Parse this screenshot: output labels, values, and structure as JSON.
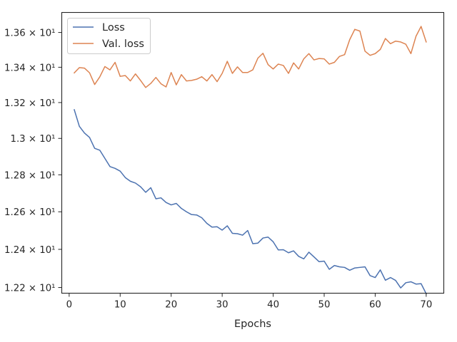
{
  "chart_data": {
    "type": "line",
    "title": "",
    "xlabel": "Epochs",
    "ylabel": "",
    "xlim": [
      -1.45,
      73.45
    ],
    "ylim": [
      12.1706,
      13.7163
    ],
    "y_scale": "log",
    "x_ticks": [
      {
        "value": 0,
        "label": "0"
      },
      {
        "value": 10,
        "label": "10"
      },
      {
        "value": 20,
        "label": "20"
      },
      {
        "value": 30,
        "label": "30"
      },
      {
        "value": 40,
        "label": "40"
      },
      {
        "value": 50,
        "label": "50"
      },
      {
        "value": 60,
        "label": "60"
      },
      {
        "value": 70,
        "label": "70"
      }
    ],
    "y_ticks": [
      {
        "value": 12.2,
        "label": "1.22 × 10¹"
      },
      {
        "value": 12.4,
        "label": "1.24 × 10¹"
      },
      {
        "value": 12.6,
        "label": "1.26 × 10¹"
      },
      {
        "value": 12.8,
        "label": "1.28 × 10¹"
      },
      {
        "value": 13.0,
        "label": "1.3 × 10¹"
      },
      {
        "value": 13.2,
        "label": "1.32 × 10¹"
      },
      {
        "value": 13.4,
        "label": "1.34 × 10¹"
      },
      {
        "value": 13.6,
        "label": "1.36 × 10¹"
      }
    ],
    "grid": false,
    "legend_position": "top-left",
    "x": [
      1,
      2,
      3,
      4,
      5,
      6,
      7,
      8,
      9,
      10,
      11,
      12,
      13,
      14,
      15,
      16,
      17,
      18,
      19,
      20,
      21,
      22,
      23,
      24,
      25,
      26,
      27,
      28,
      29,
      30,
      31,
      32,
      33,
      34,
      35,
      36,
      37,
      38,
      39,
      40,
      41,
      42,
      43,
      44,
      45,
      46,
      47,
      48,
      49,
      50,
      51,
      52,
      53,
      54,
      55,
      56,
      57,
      58,
      59,
      60,
      61,
      62,
      63,
      64,
      65,
      66,
      67,
      68,
      69,
      70
    ],
    "series": [
      {
        "name": "Loss",
        "color": "#4c72b0",
        "values": [
          13.16,
          13.067,
          13.03,
          13.005,
          12.945,
          12.935,
          12.89,
          12.845,
          12.835,
          12.82,
          12.785,
          12.765,
          12.755,
          12.735,
          12.705,
          12.73,
          12.67,
          12.675,
          12.65,
          12.637,
          12.645,
          12.618,
          12.6,
          12.585,
          12.583,
          12.568,
          12.538,
          12.518,
          12.52,
          12.502,
          12.525,
          12.485,
          12.483,
          12.475,
          12.5,
          12.43,
          12.433,
          12.46,
          12.465,
          12.44,
          12.397,
          12.398,
          12.382,
          12.392,
          12.363,
          12.35,
          12.385,
          12.36,
          12.335,
          12.338,
          12.295,
          12.315,
          12.308,
          12.305,
          12.29,
          12.302,
          12.305,
          12.308,
          12.262,
          12.252,
          12.292,
          12.238,
          12.252,
          12.237,
          12.198,
          12.225,
          12.23,
          12.218,
          12.22,
          12.168
        ]
      },
      {
        "name": "Val. loss",
        "color": "#dd8452",
        "values": [
          13.368,
          13.398,
          13.395,
          13.368,
          13.302,
          13.345,
          13.404,
          13.385,
          13.428,
          13.348,
          13.353,
          13.322,
          13.362,
          13.325,
          13.285,
          13.308,
          13.342,
          13.306,
          13.288,
          13.37,
          13.3,
          13.358,
          13.322,
          13.325,
          13.332,
          13.346,
          13.322,
          13.358,
          13.318,
          13.365,
          13.434,
          13.365,
          13.402,
          13.37,
          13.37,
          13.385,
          13.452,
          13.48,
          13.415,
          13.39,
          13.418,
          13.41,
          13.365,
          13.425,
          13.39,
          13.448,
          13.478,
          13.442,
          13.45,
          13.448,
          13.418,
          13.428,
          13.462,
          13.472,
          13.558,
          13.618,
          13.608,
          13.492,
          13.468,
          13.478,
          13.502,
          13.565,
          13.535,
          13.55,
          13.545,
          13.532,
          13.478,
          13.578,
          13.635,
          13.545
        ]
      }
    ]
  }
}
